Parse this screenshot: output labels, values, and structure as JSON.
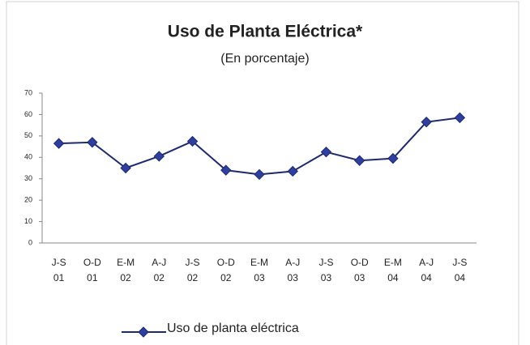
{
  "chart_data": {
    "type": "line",
    "title": "Uso de Planta Eléctrica*",
    "subtitle": "(En porcentaje)",
    "categories": [
      "J-S 01",
      "O-D 01",
      "E-M 02",
      "A-J 02",
      "J-S 02",
      "O-D 02",
      "E-M 03",
      "A-J 03",
      "J-S 03",
      "O-D 03",
      "E-M 04",
      "A-J 04",
      "J-S 04"
    ],
    "series": [
      {
        "name": "Uso de planta eléctrica",
        "color": "#1f2a6b",
        "values": [
          46.5,
          47,
          35,
          40.5,
          47.5,
          34,
          32,
          33.5,
          42.5,
          38.5,
          39.5,
          56.5,
          58.5
        ]
      }
    ],
    "ylim": [
      0,
      70
    ],
    "yticks": [
      0,
      10,
      20,
      30,
      40,
      50,
      60,
      70
    ],
    "grid": false,
    "legend": "bottom"
  }
}
